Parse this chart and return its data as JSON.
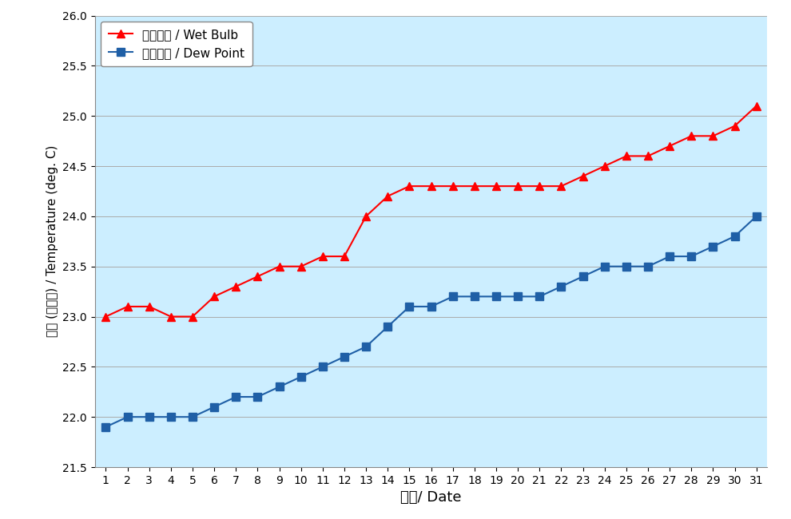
{
  "days": [
    1,
    2,
    3,
    4,
    5,
    6,
    7,
    8,
    9,
    10,
    11,
    12,
    13,
    14,
    15,
    16,
    17,
    18,
    19,
    20,
    21,
    22,
    23,
    24,
    25,
    26,
    27,
    28,
    29,
    30,
    31
  ],
  "wet_bulb": [
    23.0,
    23.1,
    23.1,
    23.0,
    23.0,
    23.2,
    23.3,
    23.4,
    23.5,
    23.5,
    23.6,
    23.6,
    24.0,
    24.2,
    24.3,
    24.3,
    24.3,
    24.3,
    24.3,
    24.3,
    24.3,
    24.3,
    24.4,
    24.5,
    24.6,
    24.6,
    24.7,
    24.8,
    24.8,
    24.9,
    25.1
  ],
  "dew_point": [
    21.9,
    22.0,
    22.0,
    22.0,
    22.0,
    22.1,
    22.2,
    22.2,
    22.3,
    22.4,
    22.5,
    22.6,
    22.7,
    22.9,
    23.1,
    23.1,
    23.2,
    23.2,
    23.2,
    23.2,
    23.2,
    23.3,
    23.4,
    23.5,
    23.5,
    23.5,
    23.6,
    23.6,
    23.7,
    23.8,
    24.0
  ],
  "wet_bulb_color": "#FF0000",
  "dew_point_color": "#1F5FA6",
  "plot_bg_color": "#CCEEFF",
  "outer_bg_color": "#FFFFFF",
  "xlabel": "日期/ Date",
  "ylabel": "溫度 (攝氏度) / Temperature (deg. C)",
  "ylim": [
    21.5,
    26.0
  ],
  "yticks": [
    21.5,
    22.0,
    22.5,
    23.0,
    23.5,
    24.0,
    24.5,
    25.0,
    25.5,
    26.0
  ],
  "legend_wet_bulb": "濕球溫度 / Wet Bulb",
  "legend_dew_point": "露點溫度 / Dew Point",
  "grid_color": "#AAAAAA",
  "line_width": 1.5,
  "marker_size": 7,
  "xlabel_fontsize": 13,
  "ylabel_fontsize": 11,
  "legend_fontsize": 11,
  "tick_fontsize": 10
}
